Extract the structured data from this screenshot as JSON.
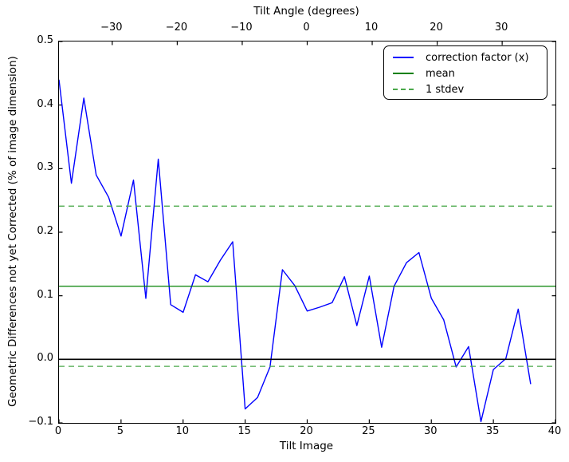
{
  "chart": {
    "ylabel": "Geometric Differences not yet Corrected (% of image dimension)",
    "xlabel": "Tilt Image",
    "x2label": "Tilt Angle (degrees)"
  },
  "legend": {
    "items": [
      {
        "label": "correction factor (x)",
        "color": "#0000ff",
        "style": "solid"
      },
      {
        "label": "mean",
        "color": "#008000",
        "style": "solid"
      },
      {
        "label": "1 stdev",
        "color": "#4aa94a",
        "style": "dashed"
      }
    ]
  },
  "chart_data": {
    "type": "line",
    "title": "",
    "xlabel": "Tilt Image",
    "ylabel": "Geometric Differences not yet Corrected (% of image dimension)",
    "x2label": "Tilt Angle (degrees)",
    "xlim": [
      0,
      40
    ],
    "ylim": [
      -0.1,
      0.5
    ],
    "x2lim": [
      -38.2,
      38.2
    ],
    "grid": false,
    "legend_position": "upper right",
    "xticks": {
      "values": [
        0,
        5,
        10,
        15,
        20,
        25,
        30,
        35,
        40
      ],
      "labels": [
        "0",
        "5",
        "10",
        "15",
        "20",
        "25",
        "30",
        "35",
        "40"
      ]
    },
    "yticks": {
      "values": [
        0.5,
        0.4,
        0.3,
        0.2,
        0.1,
        0.0,
        -0.1
      ],
      "labels": [
        "0.5",
        "0.4",
        "0.3",
        "0.2",
        "0.1",
        "0.0",
        "−0.1"
      ]
    },
    "x2ticks": {
      "values": [
        -30,
        -20,
        -10,
        0,
        10,
        20,
        30
      ],
      "labels": [
        "−30",
        "−20",
        "−10",
        "0",
        "10",
        "20",
        "30"
      ]
    },
    "series": [
      {
        "name": "correction factor (x)",
        "kind": "line",
        "color": "#0000ff",
        "linestyle": "solid",
        "x": [
          0,
          1,
          2,
          3,
          4,
          5,
          6,
          7,
          8,
          9,
          10,
          11,
          12,
          13,
          14,
          15,
          16,
          17,
          18,
          19,
          20,
          21,
          22,
          23,
          24,
          25,
          26,
          27,
          28,
          29,
          30,
          31,
          32,
          33,
          34,
          35,
          36,
          37,
          38
        ],
        "y": [
          0.44,
          0.277,
          0.411,
          0.29,
          0.255,
          0.194,
          0.282,
          0.096,
          0.315,
          0.086,
          0.074,
          0.133,
          0.122,
          0.156,
          0.185,
          -0.078,
          -0.06,
          -0.012,
          0.141,
          0.116,
          0.076,
          0.082,
          0.089,
          0.13,
          0.053,
          0.131,
          0.019,
          0.115,
          0.152,
          0.168,
          0.096,
          0.062,
          -0.012,
          0.02,
          -0.098,
          -0.016,
          0.001,
          0.079,
          -0.039
        ]
      },
      {
        "name": "mean",
        "kind": "hline",
        "color": "#008000",
        "linestyle": "solid",
        "y": [
          0.115
        ]
      },
      {
        "name": "1 stdev",
        "kind": "hline",
        "color": "#4aa94a",
        "linestyle": "dashed",
        "y": [
          0.241,
          -0.011
        ]
      },
      {
        "name": "zero-line",
        "kind": "hline",
        "color": "#000000",
        "linestyle": "solid",
        "y": [
          0.0
        ]
      }
    ]
  }
}
